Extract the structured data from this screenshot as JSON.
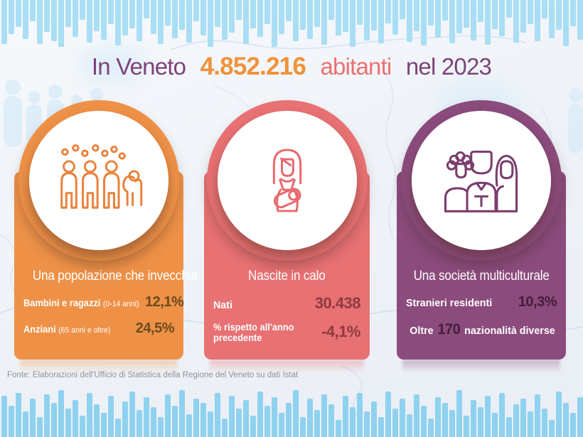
{
  "title": {
    "prefix": "In Veneto",
    "population": "4.852.216",
    "middle": "abitanti",
    "suffix": "nel 2023"
  },
  "cards": [
    {
      "id": "aging-population",
      "icon": "aging-population-icon",
      "color": "#EE9147",
      "icon_color": "#E8823B",
      "value_color": "#6B4A1E",
      "title": "Una popolazione che invecchia",
      "rows": [
        {
          "label": "Bambini e ragazzi",
          "note": "(0-14 anni)",
          "value": "12,1%"
        },
        {
          "label": "Anziani",
          "note": "(65 anni e oltre)",
          "value": "24,5%"
        }
      ]
    },
    {
      "id": "births-decline",
      "icon": "mother-baby-icon",
      "color": "#E87173",
      "icon_color": "#E8696E",
      "value_color": "#8E3B40",
      "title": "Nascite in calo",
      "rows": [
        {
          "label": "Nati",
          "note": "",
          "value": "30.438"
        },
        {
          "label": "% rispetto all'anno precedente",
          "note": "",
          "value": "-4,1%"
        }
      ]
    },
    {
      "id": "multicultural-society",
      "icon": "diverse-people-icon",
      "color": "#8B4B7C",
      "icon_color": "#7B3D6E",
      "value_color": "#451C3C",
      "title": "Una società multiculturale",
      "rows": [
        {
          "label": "Stranieri residenti",
          "note": "",
          "value": "10,3%"
        }
      ],
      "highlight": {
        "prefix": "Oltre",
        "number": "170",
        "suffix": "nazionalità diverse"
      }
    }
  ],
  "footer": {
    "source": "Fonte: Elaborazioni dell'Ufficio di Statistica della Regione del Veneto su dati Istat"
  },
  "colors": {
    "title-purple": "#7C4379",
    "title-orange": "#F0923B",
    "title-pink": "#EC7072",
    "footer-gray": "#8E939B",
    "map-line": "#C3D9EF",
    "silhouette": "#DAECF8"
  },
  "decoration": {
    "bar_color_top": "#A9DEF4",
    "bar_color_bottom": "#8FD2EF",
    "top_bars": [
      62,
      48,
      38,
      55,
      30,
      62,
      45,
      58,
      66,
      38,
      52,
      28,
      60,
      44,
      56,
      34,
      64,
      50,
      40,
      58,
      26,
      48,
      62,
      36,
      54,
      42,
      60,
      30,
      50,
      66,
      38,
      56,
      46,
      28,
      62,
      40,
      52,
      34,
      66,
      48,
      30,
      58,
      42,
      55,
      38,
      63,
      28,
      50,
      45,
      66,
      35,
      57,
      43,
      61,
      33,
      49,
      27,
      59,
      44,
      64,
      36,
      53,
      29,
      61,
      47,
      39,
      57,
      31,
      63,
      41,
      51,
      25,
      60,
      46,
      34,
      58,
      26,
      54,
      42,
      65,
      37,
      56
    ],
    "bottom_bars": [
      58,
      44,
      62,
      36,
      54,
      28,
      60,
      48,
      66,
      40,
      52,
      30,
      62,
      46,
      34,
      58,
      26,
      50,
      64,
      38,
      56,
      42,
      28,
      60,
      44,
      66,
      32,
      54,
      48,
      36,
      62,
      26,
      58,
      40,
      52,
      30,
      64,
      44,
      56,
      34,
      48,
      66,
      28,
      54,
      38,
      60,
      46,
      24,
      58,
      42,
      62,
      36,
      50,
      28,
      64,
      40,
      54,
      32,
      60,
      44,
      26,
      56,
      48,
      38,
      66,
      30,
      52,
      42,
      58,
      34,
      62,
      28,
      46,
      54,
      36,
      60,
      40,
      24,
      64,
      48,
      34,
      56
    ]
  }
}
